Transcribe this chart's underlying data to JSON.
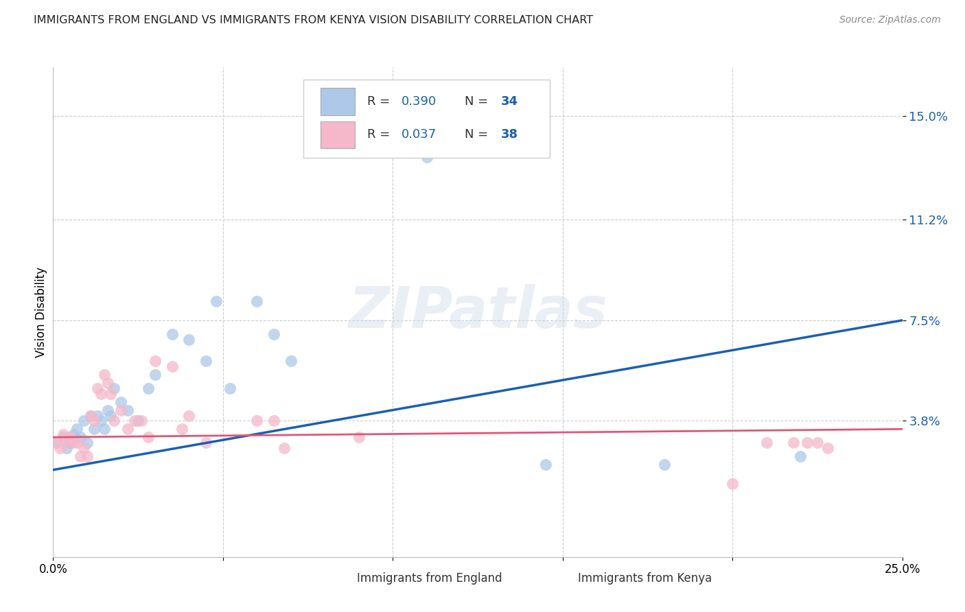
{
  "title": "IMMIGRANTS FROM ENGLAND VS IMMIGRANTS FROM KENYA VISION DISABILITY CORRELATION CHART",
  "source": "Source: ZipAtlas.com",
  "ylabel": "Vision Disability",
  "ytick_labels": [
    "3.8%",
    "7.5%",
    "11.2%",
    "15.0%"
  ],
  "ytick_values": [
    0.038,
    0.075,
    0.112,
    0.15
  ],
  "xlim": [
    0.0,
    0.25
  ],
  "ylim": [
    -0.012,
    0.168
  ],
  "legend_england_R": "R = 0.390",
  "legend_england_N": "N = 34",
  "legend_kenya_R": "R = 0.037",
  "legend_kenya_N": "N = 38",
  "england_color": "#adc8e8",
  "kenya_color": "#f5b8ca",
  "england_line_color": "#1a5fb4",
  "kenya_line_color": "#e05575",
  "background_color": "#ffffff",
  "grid_color": "#cccccc",
  "england_points_x": [
    0.001,
    0.003,
    0.004,
    0.005,
    0.006,
    0.007,
    0.008,
    0.009,
    0.01,
    0.011,
    0.012,
    0.013,
    0.014,
    0.015,
    0.016,
    0.017,
    0.018,
    0.02,
    0.022,
    0.025,
    0.028,
    0.03,
    0.035,
    0.04,
    0.045,
    0.048,
    0.052,
    0.06,
    0.065,
    0.07,
    0.11,
    0.145,
    0.18,
    0.22
  ],
  "england_points_y": [
    0.03,
    0.032,
    0.028,
    0.03,
    0.033,
    0.035,
    0.032,
    0.038,
    0.03,
    0.04,
    0.035,
    0.04,
    0.038,
    0.035,
    0.042,
    0.04,
    0.05,
    0.045,
    0.042,
    0.038,
    0.05,
    0.055,
    0.07,
    0.068,
    0.06,
    0.082,
    0.05,
    0.082,
    0.07,
    0.06,
    0.135,
    0.022,
    0.022,
    0.025
  ],
  "kenya_points_x": [
    0.001,
    0.002,
    0.003,
    0.004,
    0.005,
    0.006,
    0.007,
    0.008,
    0.009,
    0.01,
    0.011,
    0.012,
    0.013,
    0.014,
    0.015,
    0.016,
    0.017,
    0.018,
    0.02,
    0.022,
    0.024,
    0.026,
    0.028,
    0.03,
    0.035,
    0.038,
    0.04,
    0.045,
    0.06,
    0.065,
    0.068,
    0.09,
    0.2,
    0.21,
    0.218,
    0.222,
    0.225,
    0.228
  ],
  "kenya_points_y": [
    0.03,
    0.028,
    0.033,
    0.03,
    0.032,
    0.03,
    0.03,
    0.025,
    0.028,
    0.025,
    0.04,
    0.038,
    0.05,
    0.048,
    0.055,
    0.052,
    0.048,
    0.038,
    0.042,
    0.035,
    0.038,
    0.038,
    0.032,
    0.06,
    0.058,
    0.035,
    0.04,
    0.03,
    0.038,
    0.038,
    0.028,
    0.032,
    0.015,
    0.03,
    0.03,
    0.03,
    0.03,
    0.028
  ],
  "england_line_x": [
    0.0,
    0.25
  ],
  "england_line_y": [
    0.02,
    0.075
  ],
  "kenya_line_x": [
    0.0,
    0.25
  ],
  "kenya_line_y": [
    0.032,
    0.035
  ]
}
